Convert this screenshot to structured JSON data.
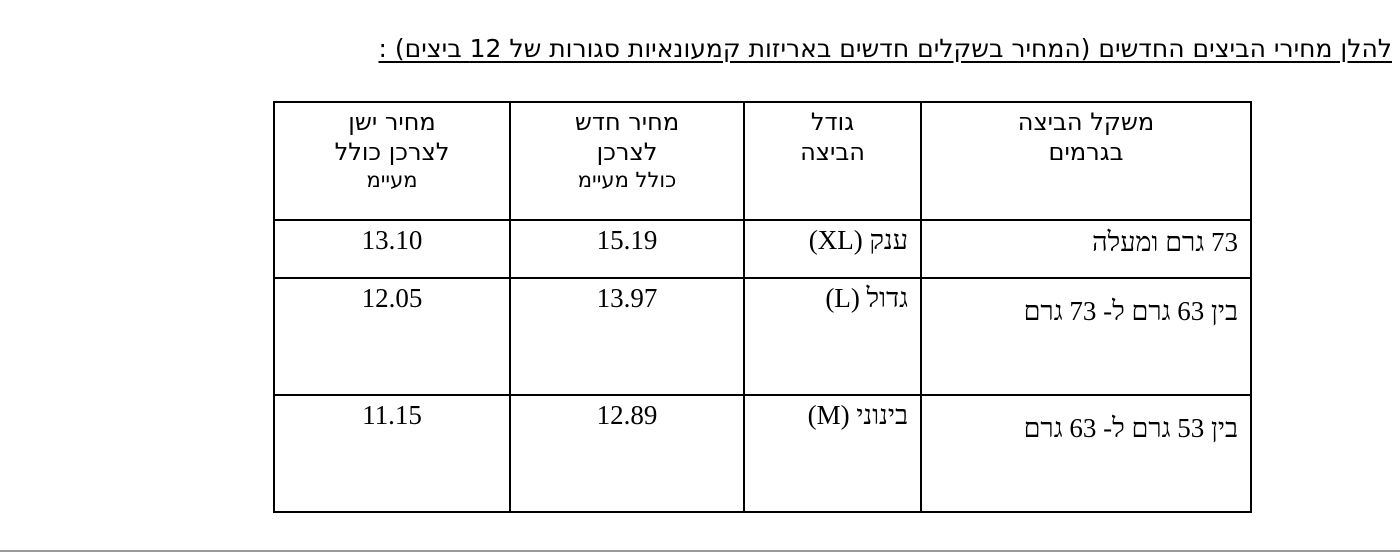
{
  "heading": "להלן מחירי הביצים החדשים (המחיר בשקלים חדשים באריזות קמעונאיות סגורות של 12 ביצים) :",
  "table": {
    "headers": {
      "weight": [
        "משקל הביצה",
        "בגרמים"
      ],
      "size": [
        "גודל",
        "הביצה"
      ],
      "new_price": [
        "מחיר חדש",
        "לצרכן",
        "כולל מעיימ"
      ],
      "old_price": [
        "מחיר ישן",
        "לצרכן כולל",
        "מעיימ"
      ]
    },
    "rows": [
      {
        "weight": "73 גרם ומעלה",
        "size": "ענק (XL)",
        "new_price": "15.19",
        "old_price": "13.10"
      },
      {
        "weight": "בין 63 גרם ל- 73 גרם",
        "size": "גדול (L)",
        "new_price": "13.97",
        "old_price": "12.05"
      },
      {
        "weight": "בין 53 גרם ל- 63 גרם",
        "size": "בינוני (M)",
        "new_price": "12.89",
        "old_price": "11.15"
      }
    ]
  }
}
